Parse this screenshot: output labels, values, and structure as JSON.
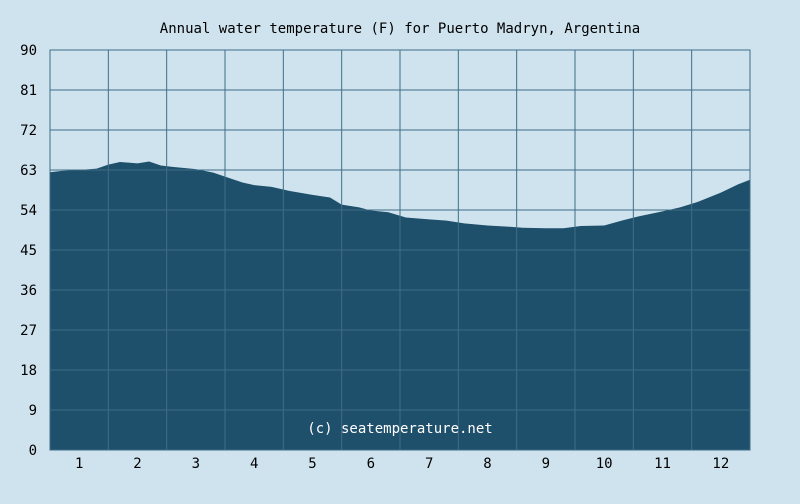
{
  "chart_data": {
    "type": "area",
    "title": "Annual water temperature (F) for Puerto Madryn, Argentina",
    "xlabel": "",
    "ylabel": "",
    "x_ticks": [
      "1",
      "2",
      "3",
      "4",
      "5",
      "6",
      "7",
      "8",
      "9",
      "10",
      "11",
      "12"
    ],
    "y_ticks": [
      "0",
      "9",
      "18",
      "27",
      "36",
      "45",
      "54",
      "63",
      "72",
      "81",
      "90"
    ],
    "ylim": [
      0,
      90
    ],
    "xlim": [
      0.5,
      12.5
    ],
    "grid": true,
    "legend": "none",
    "watermark": "(c) seatemperature.net",
    "colors": {
      "background": "#cfe3ee",
      "fill": "#1e4f6b",
      "grid": "#3f6e86",
      "text": "#000000"
    },
    "series": [
      {
        "x": [
          0.5,
          0.7,
          1.0,
          1.3,
          1.5,
          1.7,
          2.0,
          2.2,
          2.4,
          2.6,
          3.0,
          3.3,
          3.5,
          3.8,
          4.0,
          4.3,
          4.6,
          5.0,
          5.3,
          5.5,
          5.8,
          6.0,
          6.3,
          6.6,
          7.0,
          7.3,
          7.6,
          8.0,
          8.3,
          8.6,
          9.0,
          9.3,
          9.6,
          10.0,
          10.3,
          10.6,
          11.0,
          11.3,
          11.6,
          12.0,
          12.3,
          12.5
        ],
        "values": [
          62.5,
          62.8,
          63.0,
          63.3,
          64.2,
          64.8,
          64.5,
          64.9,
          64.0,
          63.7,
          63.2,
          62.4,
          61.5,
          60.2,
          59.6,
          59.2,
          58.3,
          57.4,
          56.8,
          55.2,
          54.6,
          53.9,
          53.5,
          52.3,
          51.9,
          51.6,
          51.0,
          50.5,
          50.3,
          50.0,
          49.9,
          49.9,
          50.4,
          50.5,
          51.6,
          52.6,
          53.7,
          54.6,
          55.8,
          57.9,
          59.8,
          60.8
        ]
      }
    ]
  }
}
